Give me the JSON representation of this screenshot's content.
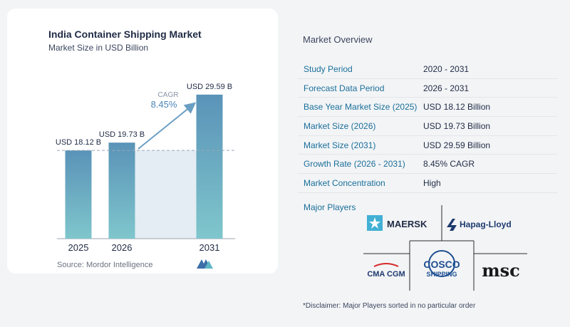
{
  "chart_data": {
    "type": "bar",
    "title": "India Container Shipping Market",
    "subtitle": "Market Size in USD Billion",
    "categories": [
      "2025",
      "2026",
      "2031"
    ],
    "values": [
      18.12,
      19.73,
      29.59
    ],
    "value_labels": [
      "USD 18.12 B",
      "USD 19.73 B",
      "USD 29.59 B"
    ],
    "cagr_label": "CAGR",
    "cagr_value": "8.45%",
    "ylim": [
      0,
      30
    ],
    "colors": {
      "bar_top": "#5a93b8",
      "bar_bottom": "#7fc6cc",
      "band": "#e4edf4",
      "arrow": "#6b9ec3"
    }
  },
  "source": "Source: Mordor Intelligence",
  "overview": {
    "title": "Market Overview",
    "rows": [
      {
        "label": "Study Period",
        "value": "2020 - 2031"
      },
      {
        "label": "Forecast Data Period",
        "value": "2026 - 2031"
      },
      {
        "label": "Base Year Market Size (2025)",
        "value": "USD 18.12 Billion"
      },
      {
        "label": "Market Size (2026)",
        "value": "USD 19.73 Billion"
      },
      {
        "label": "Market Size (2031)",
        "value": "USD 29.59 Billion"
      },
      {
        "label": "Growth Rate (2026 - 2031)",
        "value": "8.45% CAGR"
      },
      {
        "label": "Market Concentration",
        "value": "High"
      }
    ]
  },
  "players": {
    "label": "Major Players",
    "logos": [
      "MAERSK",
      "Hapag-Lloyd",
      "CMA CGM",
      "COSCO",
      "SHIPPING",
      "msc"
    ]
  },
  "disclaimer": "*Disclaimer: Major Players sorted in no particular order"
}
